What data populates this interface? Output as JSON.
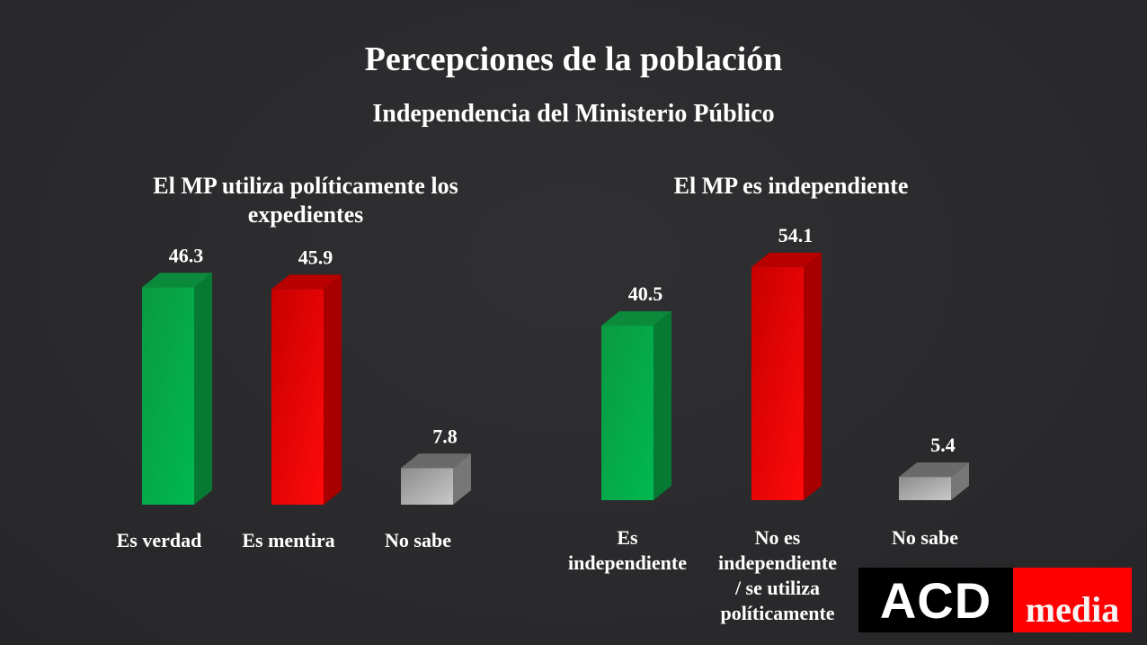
{
  "header": {
    "title": "Percepciones de la población",
    "subtitle": "Independencia del Ministerio Público"
  },
  "colors": {
    "green": "#00b050",
    "red": "#ff0000",
    "gray": "#bfbfbf",
    "background": "#2b2b2d"
  },
  "chart_data": [
    {
      "type": "bar",
      "title": "El MP utiliza políticamente los expedientes",
      "categories": [
        [
          "Es verdad"
        ],
        [
          "Es mentira"
        ],
        [
          "No sabe"
        ]
      ],
      "values": [
        46.3,
        45.9,
        7.8
      ],
      "value_labels": [
        "46.3",
        "45.9",
        "7.8"
      ],
      "bar_colors": [
        "green",
        "red",
        "gray"
      ],
      "xlabel": "",
      "ylabel": "",
      "ylim": [
        0,
        60
      ],
      "grid": false,
      "legend": "none"
    },
    {
      "type": "bar",
      "title": "El MP es independiente",
      "categories": [
        [
          "Es",
          "independiente"
        ],
        [
          "No es",
          "independiente",
          "/ se utiliza",
          "políticamente"
        ],
        [
          "No sabe"
        ]
      ],
      "values": [
        40.5,
        54.1,
        5.4
      ],
      "value_labels": [
        "40.5",
        "54.1",
        "5.4"
      ],
      "bar_colors": [
        "green",
        "red",
        "gray"
      ],
      "xlabel": "",
      "ylabel": "",
      "ylim": [
        0,
        60
      ],
      "grid": false,
      "legend": "none"
    }
  ],
  "logo": {
    "part1": "ACD",
    "part2": "media"
  }
}
